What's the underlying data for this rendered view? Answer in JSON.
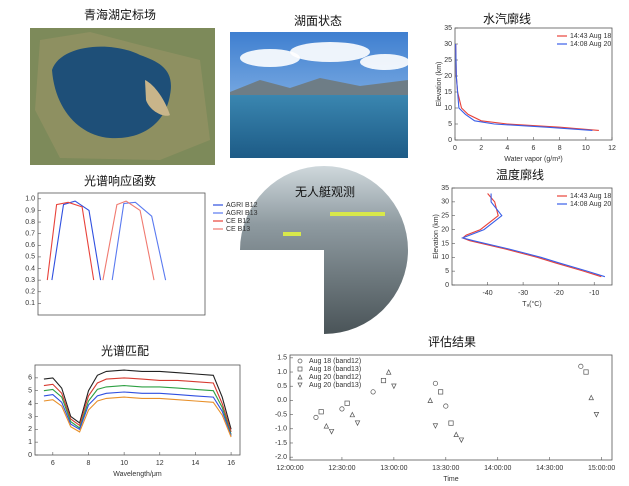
{
  "panels": {
    "map": {
      "title": "青海湖定标场"
    },
    "lake": {
      "title": "湖面状态"
    },
    "boat": {
      "title": "无人艇观测"
    }
  },
  "chart_data": [
    {
      "type": "line",
      "title": "水汽廓线",
      "xlabel": "Water vapor (g/m³)",
      "ylabel": "Elevation (km)",
      "xlim": [
        0,
        12
      ],
      "xticks": [
        0,
        2,
        4,
        6,
        8,
        10,
        12
      ],
      "ylim": [
        0,
        35
      ],
      "yticks": [
        0,
        5,
        10,
        15,
        20,
        25,
        30,
        35
      ],
      "legend": "upper right",
      "series": [
        {
          "name": "14:43 Aug 18",
          "color": "#e8423a",
          "x": [
            11,
            8,
            4,
            2,
            1,
            0.5,
            0.2,
            0.1,
            0.05
          ],
          "values": [
            3,
            4,
            5,
            6,
            8,
            10,
            15,
            20,
            30
          ]
        },
        {
          "name": "14:08 Aug 20",
          "color": "#3a5fe8",
          "x": [
            10.5,
            7,
            3,
            1.5,
            0.8,
            0.3,
            0.2,
            0.1,
            0.05
          ],
          "values": [
            3,
            4,
            5,
            6,
            8,
            10,
            15,
            20,
            30
          ]
        }
      ]
    },
    {
      "type": "line",
      "title": "温度廓线",
      "xlabel": "Tₐ(°C)",
      "ylabel": "Elevation (km)",
      "xlim": [
        -50,
        -5
      ],
      "xticks": [
        -40,
        -30,
        -20,
        -10
      ],
      "ylim": [
        0,
        35
      ],
      "yticks": [
        0,
        5,
        10,
        15,
        20,
        25,
        30,
        35
      ],
      "legend": "upper right",
      "series": [
        {
          "name": "14:43 Aug 18",
          "color": "#e8423a",
          "x": [
            -8,
            -13,
            -21,
            -26,
            -35,
            -45,
            -47,
            -46,
            -42,
            -37,
            -38,
            -40
          ],
          "values": [
            3,
            5,
            8,
            10,
            13,
            16,
            17,
            18,
            20,
            25,
            30,
            33
          ]
        },
        {
          "name": "14:08 Aug 20",
          "color": "#3a5fe8",
          "x": [
            -7,
            -12,
            -20,
            -25,
            -34,
            -44,
            -47,
            -45,
            -41,
            -36,
            -39,
            -39
          ],
          "values": [
            3,
            5,
            8,
            10,
            13,
            16,
            17,
            18,
            20,
            25,
            30,
            33
          ]
        }
      ]
    },
    {
      "type": "line",
      "title": "光谱响应函数",
      "xlim": [
        10,
        13.6
      ],
      "ylim": [
        0,
        1.05
      ],
      "yticks": [
        0.1,
        0.2,
        0.3,
        0.4,
        0.5,
        0.6,
        0.7,
        0.8,
        0.9,
        {
          "value": 1,
          "label": "1.0"
        }
      ],
      "legend": "right",
      "series": [
        {
          "name": "AGRI B12",
          "color": "#2f4fe0",
          "x": [
            10.3,
            10.55,
            10.8,
            11.1,
            11.35
          ],
          "values": [
            0.3,
            0.95,
            0.98,
            0.9,
            0.3
          ]
        },
        {
          "name": "AGRI B13",
          "color": "#5a7af0",
          "x": [
            11.6,
            11.85,
            12.1,
            12.45,
            12.75
          ],
          "values": [
            0.3,
            0.96,
            0.97,
            0.85,
            0.3
          ]
        },
        {
          "name": "CE B12",
          "color": "#e8423a",
          "x": [
            10.2,
            10.4,
            10.65,
            10.95,
            11.2
          ],
          "values": [
            0.3,
            0.95,
            0.97,
            0.93,
            0.3
          ]
        },
        {
          "name": "CE B13",
          "color": "#f07a70",
          "x": [
            11.4,
            11.7,
            11.9,
            12.2,
            12.5
          ],
          "values": [
            0.3,
            0.95,
            0.98,
            0.9,
            0.3
          ]
        }
      ]
    },
    {
      "type": "line",
      "title": "光谱匹配",
      "xlabel": "Wavelength/μm",
      "xlim": [
        5,
        16.5
      ],
      "xticks": [
        6,
        8,
        10,
        12,
        14,
        16
      ],
      "ylim": [
        0,
        7
      ],
      "yticks": [
        0,
        1,
        2,
        3,
        4,
        5,
        6
      ],
      "series": [
        {
          "color": "#222222",
          "x": [
            5.5,
            6,
            6.5,
            7,
            7.5,
            8,
            8.5,
            9,
            10,
            11,
            12,
            13,
            14,
            15,
            15.5,
            16
          ],
          "values": [
            5.9,
            6.0,
            5.2,
            3.0,
            2.5,
            5.0,
            6.2,
            6.5,
            6.6,
            6.5,
            6.5,
            6.4,
            6.3,
            6.2,
            4.5,
            2.0
          ]
        },
        {
          "color": "#d63a2f",
          "x": [
            5.5,
            6,
            6.5,
            7,
            7.5,
            8,
            8.5,
            9,
            10,
            11,
            12,
            13,
            14,
            15,
            15.5,
            16
          ],
          "values": [
            5.4,
            5.5,
            4.8,
            2.8,
            2.3,
            4.6,
            5.6,
            5.9,
            6.0,
            5.9,
            5.8,
            5.8,
            5.7,
            5.6,
            4.0,
            1.8
          ]
        },
        {
          "color": "#2ea043",
          "x": [
            5.5,
            6,
            6.5,
            7,
            7.5,
            8,
            8.5,
            9,
            10,
            11,
            12,
            13,
            14,
            15,
            15.5,
            16
          ],
          "values": [
            5.0,
            5.1,
            4.5,
            2.6,
            2.1,
            4.2,
            5.1,
            5.3,
            5.4,
            5.3,
            5.3,
            5.2,
            5.1,
            5.0,
            3.7,
            1.6
          ]
        },
        {
          "color": "#2f4fe0",
          "x": [
            5.5,
            6,
            6.5,
            7,
            7.5,
            8,
            8.5,
            9,
            10,
            11,
            12,
            13,
            14,
            15,
            15.5,
            16
          ],
          "values": [
            4.6,
            4.7,
            4.1,
            2.4,
            2.0,
            3.9,
            4.6,
            4.8,
            4.9,
            4.8,
            4.8,
            4.7,
            4.6,
            4.5,
            3.4,
            1.5
          ]
        },
        {
          "color": "#e8902a",
          "x": [
            5.5,
            6,
            6.5,
            7,
            7.5,
            8,
            8.5,
            9,
            10,
            11,
            12,
            13,
            14,
            15,
            15.5,
            16
          ],
          "values": [
            4.2,
            4.3,
            3.8,
            2.2,
            1.8,
            3.5,
            4.2,
            4.4,
            4.5,
            4.4,
            4.4,
            4.3,
            4.2,
            4.1,
            3.1,
            1.4
          ]
        }
      ]
    },
    {
      "type": "scatter",
      "title": "评估结果",
      "xlabel": "Time",
      "xlim": [
        12,
        15.1
      ],
      "xticks": [
        {
          "value": 12,
          "label": "12:00:00"
        },
        {
          "value": 12.5,
          "label": "12:30:00"
        },
        {
          "value": 13,
          "label": "13:00:00"
        },
        {
          "value": 13.5,
          "label": "13:30:00"
        },
        {
          "value": 14,
          "label": "14:00:00"
        },
        {
          "value": 14.5,
          "label": "14:30:00"
        },
        {
          "value": 15,
          "label": "15:00:00"
        }
      ],
      "ylim": [
        -2.1,
        1.6
      ],
      "yticks": [
        1.5,
        {
          "value": 1,
          "label": "1.0"
        },
        0.5,
        {
          "value": 0,
          "label": "0.0"
        },
        -0.5,
        {
          "value": -1,
          "label": "-1.0"
        },
        -1.5,
        {
          "value": -2,
          "label": "-2.0"
        }
      ],
      "legend": "upper left",
      "series": [
        {
          "name": "Aug 18 (band12)",
          "color": "#555555",
          "marker": "circle",
          "x": [
            12.25,
            12.5,
            12.8,
            13.4,
            13.5,
            14.8
          ],
          "values": [
            -0.6,
            -0.3,
            0.3,
            0.6,
            -0.2,
            1.2
          ]
        },
        {
          "name": "Aug 18 (band13)",
          "color": "#555555",
          "marker": "square",
          "x": [
            12.3,
            12.55,
            12.9,
            13.45,
            13.55,
            14.85
          ],
          "values": [
            -0.4,
            -0.1,
            0.7,
            0.3,
            -0.8,
            1.0
          ]
        },
        {
          "name": "Aug 20 (band12)",
          "color": "#555555",
          "marker": "triangle",
          "x": [
            12.35,
            12.6,
            12.95,
            13.35,
            13.6,
            14.9
          ],
          "values": [
            -0.9,
            -0.5,
            1.0,
            0.0,
            -1.2,
            0.1
          ]
        },
        {
          "name": "Aug 20 (band13)",
          "color": "#555555",
          "marker": "triangle-down",
          "x": [
            12.4,
            12.65,
            13.0,
            13.4,
            13.65,
            14.95
          ],
          "values": [
            -1.1,
            -0.8,
            0.5,
            -0.9,
            -1.4,
            -0.5
          ]
        }
      ]
    }
  ]
}
